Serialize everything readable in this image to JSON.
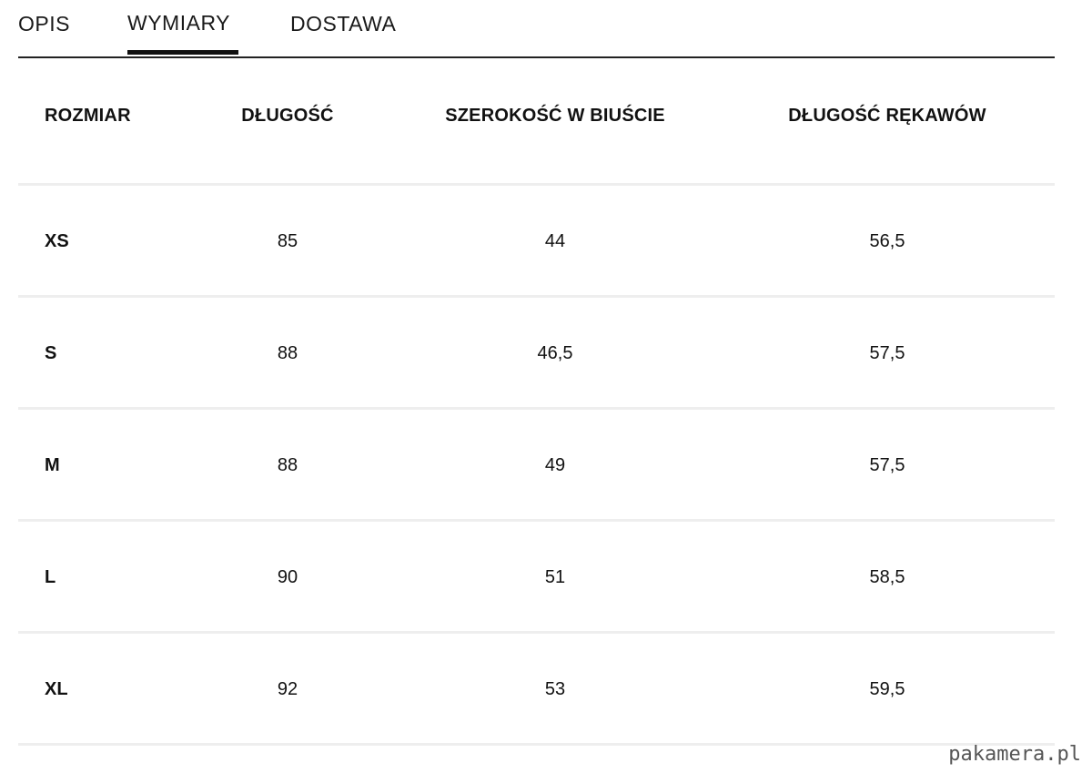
{
  "tabs": [
    {
      "label": "OPIS"
    },
    {
      "label": "WYMIARY",
      "active": true
    },
    {
      "label": "DOSTAWA"
    }
  ],
  "table": {
    "headers": [
      "ROZMIAR",
      "DŁUGOŚĆ",
      "SZEROKOŚĆ W BIUŚCIE",
      "DŁUGOŚĆ RĘKAWÓW"
    ],
    "rows": [
      [
        "XS",
        "85",
        "44",
        "56,5"
      ],
      [
        "S",
        "88",
        "46,5",
        "57,5"
      ],
      [
        "M",
        "88",
        "49",
        "57,5"
      ],
      [
        "L",
        "90",
        "51",
        "58,5"
      ],
      [
        "XL",
        "92",
        "53",
        "59,5"
      ]
    ]
  },
  "watermark": "pakamera.pl",
  "colors": {
    "text": "#111111",
    "divider": "#eeeeee",
    "tab_border": "#222222",
    "watermark": "#555555"
  }
}
